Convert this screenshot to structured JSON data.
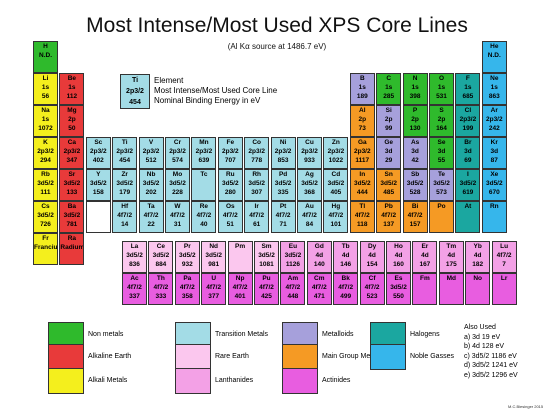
{
  "title": "Most Intense/Most Used XPS Core Lines",
  "subtitle": "(Al Kα source at 1486.7 eV)",
  "key": {
    "symbol": "Ti",
    "line": "2p3/2",
    "energy": "454",
    "labels": [
      "Element",
      "Most Intense/Most Used Core Line",
      "Nominal Binding Energy in eV"
    ]
  },
  "colors": {
    "nonmetal": "#2fba2c",
    "alkaline_earth": "#e83a3a",
    "alkali": "#f4ef1d",
    "transition": "#a3dce6",
    "rare_earth": "#fbc7ee",
    "lanthanides": "#f3a1e6",
    "metalloids": "#a6a0db",
    "main_group": "#f59a24",
    "actinides": "#e85de0",
    "halogens": "#1ba7a0",
    "noble": "#36b6eb"
  },
  "elements": [
    [
      "H",
      "N.D.",
      "",
      "nonmetal"
    ],
    [
      "He",
      "N.D.",
      "",
      "noble"
    ],
    [
      "Li",
      "1s",
      "56",
      "alkali"
    ],
    [
      "Be",
      "1s",
      "112",
      "alkaline_earth"
    ],
    [
      "B",
      "1s",
      "189",
      "metalloids"
    ],
    [
      "C",
      "1s",
      "285",
      "nonmetal"
    ],
    [
      "N",
      "1s",
      "398",
      "nonmetal"
    ],
    [
      "O",
      "1s",
      "531",
      "nonmetal"
    ],
    [
      "F",
      "1s",
      "685",
      "halogens"
    ],
    [
      "Ne",
      "1s",
      "863",
      "noble"
    ],
    [
      "Na",
      "1s",
      "1072",
      "alkali"
    ],
    [
      "Mg",
      "2p",
      "50",
      "alkaline_earth"
    ],
    [
      "Al",
      "2p",
      "73",
      "main_group"
    ],
    [
      "Si",
      "2p",
      "99",
      "metalloids"
    ],
    [
      "P",
      "2p",
      "130",
      "nonmetal"
    ],
    [
      "S",
      "2p",
      "164",
      "nonmetal"
    ],
    [
      "Cl",
      "2p3/2",
      "199",
      "halogens"
    ],
    [
      "Ar",
      "2p3/2",
      "242",
      "noble"
    ],
    [
      "K",
      "2p3/2",
      "294",
      "alkali"
    ],
    [
      "Ca",
      "2p3/2",
      "347",
      "alkaline_earth"
    ],
    [
      "Sc",
      "2p3/2",
      "402",
      "transition"
    ],
    [
      "Ti",
      "2p3/2",
      "454",
      "transition"
    ],
    [
      "V",
      "2p3/2",
      "512",
      "transition"
    ],
    [
      "Cr",
      "2p3/2",
      "574",
      "transition"
    ],
    [
      "Mn",
      "2p3/2",
      "639",
      "transition"
    ],
    [
      "Fe",
      "2p3/2",
      "707",
      "transition"
    ],
    [
      "Co",
      "2p3/2",
      "778",
      "transition"
    ],
    [
      "Ni",
      "2p3/2",
      "853",
      "transition"
    ],
    [
      "Cu",
      "2p3/2",
      "933",
      "transition"
    ],
    [
      "Zn",
      "2p3/2",
      "1022",
      "transition"
    ],
    [
      "Ga",
      "2p3/2",
      "1117",
      "main_group"
    ],
    [
      "Ge",
      "3d",
      "29",
      "metalloids"
    ],
    [
      "As",
      "3d",
      "42",
      "metalloids"
    ],
    [
      "Se",
      "3d",
      "55",
      "nonmetal"
    ],
    [
      "Br",
      "3d",
      "69",
      "halogens"
    ],
    [
      "Kr",
      "3d",
      "87",
      "noble"
    ],
    [
      "Rb",
      "3d5/2",
      "111",
      "alkali"
    ],
    [
      "Sr",
      "3d5/2",
      "133",
      "alkaline_earth"
    ],
    [
      "Y",
      "3d5/2",
      "158",
      "transition"
    ],
    [
      "Zr",
      "3d5/2",
      "179",
      "transition"
    ],
    [
      "Nb",
      "3d5/2",
      "202",
      "transition"
    ],
    [
      "Mo",
      "3d5/2",
      "228",
      "transition"
    ],
    [
      "Tc",
      "",
      "",
      "transition"
    ],
    [
      "Ru",
      "3d5/2",
      "280",
      "transition"
    ],
    [
      "Rh",
      "3d5/2",
      "307",
      "transition"
    ],
    [
      "Pd",
      "3d5/2",
      "335",
      "transition"
    ],
    [
      "Ag",
      "3d5/2",
      "368",
      "transition"
    ],
    [
      "Cd",
      "3d5/2",
      "405",
      "transition"
    ],
    [
      "In",
      "3d5/2",
      "444",
      "main_group"
    ],
    [
      "Sn",
      "3d5/2",
      "485",
      "main_group"
    ],
    [
      "Sb",
      "3d5/2",
      "528",
      "metalloids"
    ],
    [
      "Te",
      "3d5/2",
      "573",
      "metalloids"
    ],
    [
      "I",
      "3d5/2",
      "619",
      "halogens"
    ],
    [
      "Xe",
      "3d5/2",
      "670",
      "noble"
    ],
    [
      "Cs",
      "3d5/2",
      "726",
      "alkali"
    ],
    [
      "Ba",
      "3d5/2",
      "781",
      "alkaline_earth"
    ],
    [
      "",
      "",
      "",
      "white"
    ],
    [
      "Hf",
      "4f7/2",
      "14",
      "transition"
    ],
    [
      "Ta",
      "4f7/2",
      "22",
      "transition"
    ],
    [
      "W",
      "4f7/2",
      "31",
      "transition"
    ],
    [
      "Re",
      "4f7/2",
      "40",
      "transition"
    ],
    [
      "Os",
      "4f7/2",
      "51",
      "transition"
    ],
    [
      "Ir",
      "4f7/2",
      "61",
      "transition"
    ],
    [
      "Pt",
      "4f7/2",
      "71",
      "transition"
    ],
    [
      "Au",
      "4f7/2",
      "84",
      "transition"
    ],
    [
      "Hg",
      "4f7/2",
      "101",
      "transition"
    ],
    [
      "Tl",
      "4f7/2",
      "118",
      "main_group"
    ],
    [
      "Pb",
      "4f7/2",
      "137",
      "main_group"
    ],
    [
      "Bi",
      "4f7/2",
      "157",
      "main_group"
    ],
    [
      "Po",
      "",
      "",
      "main_group"
    ],
    [
      "At",
      "",
      "",
      "halogens"
    ],
    [
      "Rn",
      "",
      "",
      "noble"
    ],
    [
      "Fr",
      "Francium",
      "",
      "alkali"
    ],
    [
      "Ra",
      "Radium",
      "",
      "alkaline_earth"
    ],
    [
      "La",
      "3d5/2",
      "836",
      "rare_earth"
    ],
    [
      "Ce",
      "3d5/2",
      "884",
      "rare_earth"
    ],
    [
      "Pr",
      "3d5/2",
      "932",
      "rare_earth"
    ],
    [
      "Nd",
      "3d5/2",
      "981",
      "rare_earth"
    ],
    [
      "Pm",
      "",
      "",
      "rare_earth"
    ],
    [
      "Sm",
      "3d5/2",
      "1081",
      "rare_earth"
    ],
    [
      "Eu",
      "3d5/2",
      "1126",
      "lanthanides"
    ],
    [
      "Gd",
      "4d",
      "140",
      "lanthanides"
    ],
    [
      "Tb",
      "4d",
      "146",
      "lanthanides"
    ],
    [
      "Dy",
      "4d",
      "154",
      "lanthanides"
    ],
    [
      "Ho",
      "4d",
      "160",
      "lanthanides"
    ],
    [
      "Er",
      "4d",
      "167",
      "lanthanides"
    ],
    [
      "Tm",
      "4d",
      "175",
      "lanthanides"
    ],
    [
      "Yb",
      "4d",
      "182",
      "lanthanides"
    ],
    [
      "Lu",
      "4f7/2",
      "7",
      "lanthanides"
    ],
    [
      "Ac",
      "4f7/2",
      "337",
      "actinides"
    ],
    [
      "Th",
      "4f7/2",
      "333",
      "actinides"
    ],
    [
      "Pa",
      "4f7/2",
      "358",
      "actinides"
    ],
    [
      "U",
      "4f7/2",
      "377",
      "actinides"
    ],
    [
      "Np",
      "4f7/2",
      "401",
      "actinides"
    ],
    [
      "Pu",
      "4f7/2",
      "425",
      "actinides"
    ],
    [
      "Am",
      "4f7/2",
      "448",
      "actinides"
    ],
    [
      "Cm",
      "4f7/2",
      "471",
      "actinides"
    ],
    [
      "Bk",
      "4f7/2",
      "499",
      "actinides"
    ],
    [
      "Cf",
      "4f7/2",
      "523",
      "actinides"
    ],
    [
      "Es",
      "3d5/2",
      "550",
      "actinides"
    ],
    [
      "Fm",
      "",
      "",
      "actinides"
    ],
    [
      "Md",
      "",
      "",
      "actinides"
    ],
    [
      "No",
      "",
      "",
      "actinides"
    ],
    [
      "Lr",
      "",
      "",
      "actinides"
    ]
  ],
  "legend": [
    {
      "label": "Non metals",
      "color": "nonmetal"
    },
    {
      "label": "Transition Metals",
      "color": "transition"
    },
    {
      "label": "Metalloids",
      "color": "metalloids"
    },
    {
      "label": "Halogens",
      "color": "halogens"
    },
    {
      "label": "Alkaline Earth",
      "color": "alkaline_earth"
    },
    {
      "label": "Rare Earth",
      "color": "rare_earth"
    },
    {
      "label": "Main Group Metals",
      "color": "main_group"
    },
    {
      "label": "Noble Gasses",
      "color": "noble"
    },
    {
      "label": "Alkali Metals",
      "color": "alkali"
    },
    {
      "label": "Lanthanides",
      "color": "lanthanides"
    },
    {
      "label": "Actinides",
      "color": "actinides"
    }
  ],
  "also_used": {
    "heading": "Also Used",
    "items": [
      "a) 3d 19 eV",
      "b) 4d 128 eV",
      "c) 3d5/2 1186 eV",
      "d) 3d5/2 1241 eV",
      "e) 3d5/2 1296 eV"
    ]
  },
  "credit": "M.C.Biesinger 2015"
}
